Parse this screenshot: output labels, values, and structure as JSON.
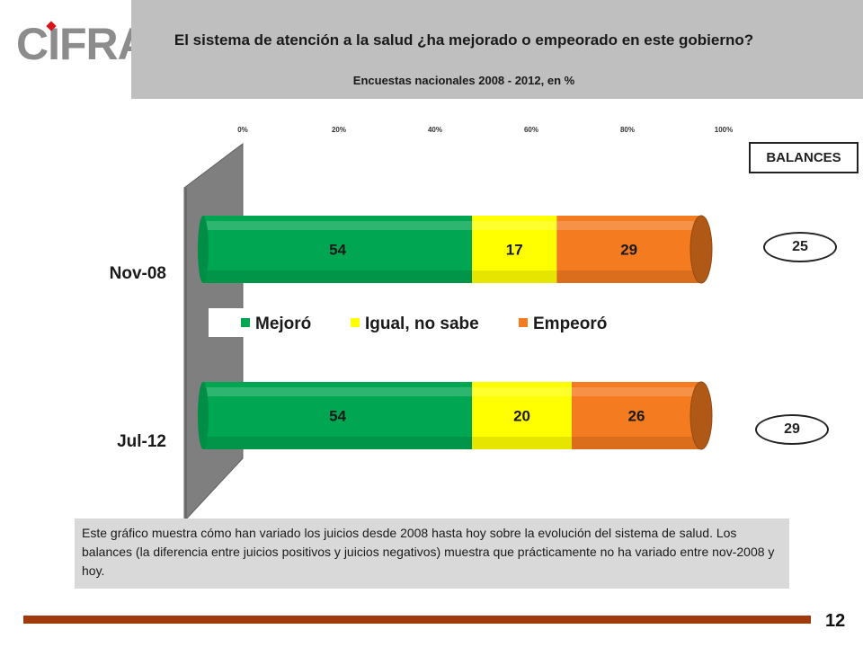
{
  "logo": {
    "text": "CIFRA"
  },
  "header": {
    "title": "El sistema de atención a la salud ¿ha mejorado o empeorado en este gobierno?",
    "subtitle": "Encuestas nacionales 2008 - 2012, en %"
  },
  "chart_data": {
    "type": "bar",
    "orientation": "horizontal",
    "stacked": true,
    "categories": [
      "Nov-08",
      "Jul-12"
    ],
    "series": [
      {
        "name": "Mejoró",
        "values": [
          54,
          54
        ],
        "color": "#00a651"
      },
      {
        "name": "Igual, no sabe",
        "values": [
          17,
          20
        ],
        "color": "#ffff00"
      },
      {
        "name": "Empeoró",
        "values": [
          29,
          26
        ],
        "color": "#f47b20"
      }
    ],
    "xlim": [
      0,
      100
    ],
    "x_ticks": [
      "0%",
      "20%",
      "40%",
      "60%",
      "80%",
      "100%"
    ],
    "legend_position": "center",
    "grid": false
  },
  "balances": {
    "label": "BALANCES",
    "values": [
      "25",
      "29"
    ]
  },
  "note": "Este gráfico muestra cómo han variado los juicios desde 2008 hasta hoy sobre la evolución del sistema de salud. Los balances (la diferencia entre juicios positivos y juicios negativos) muestra que prácticamente no ha variado entre nov-2008 y hoy.",
  "page_number": "12"
}
